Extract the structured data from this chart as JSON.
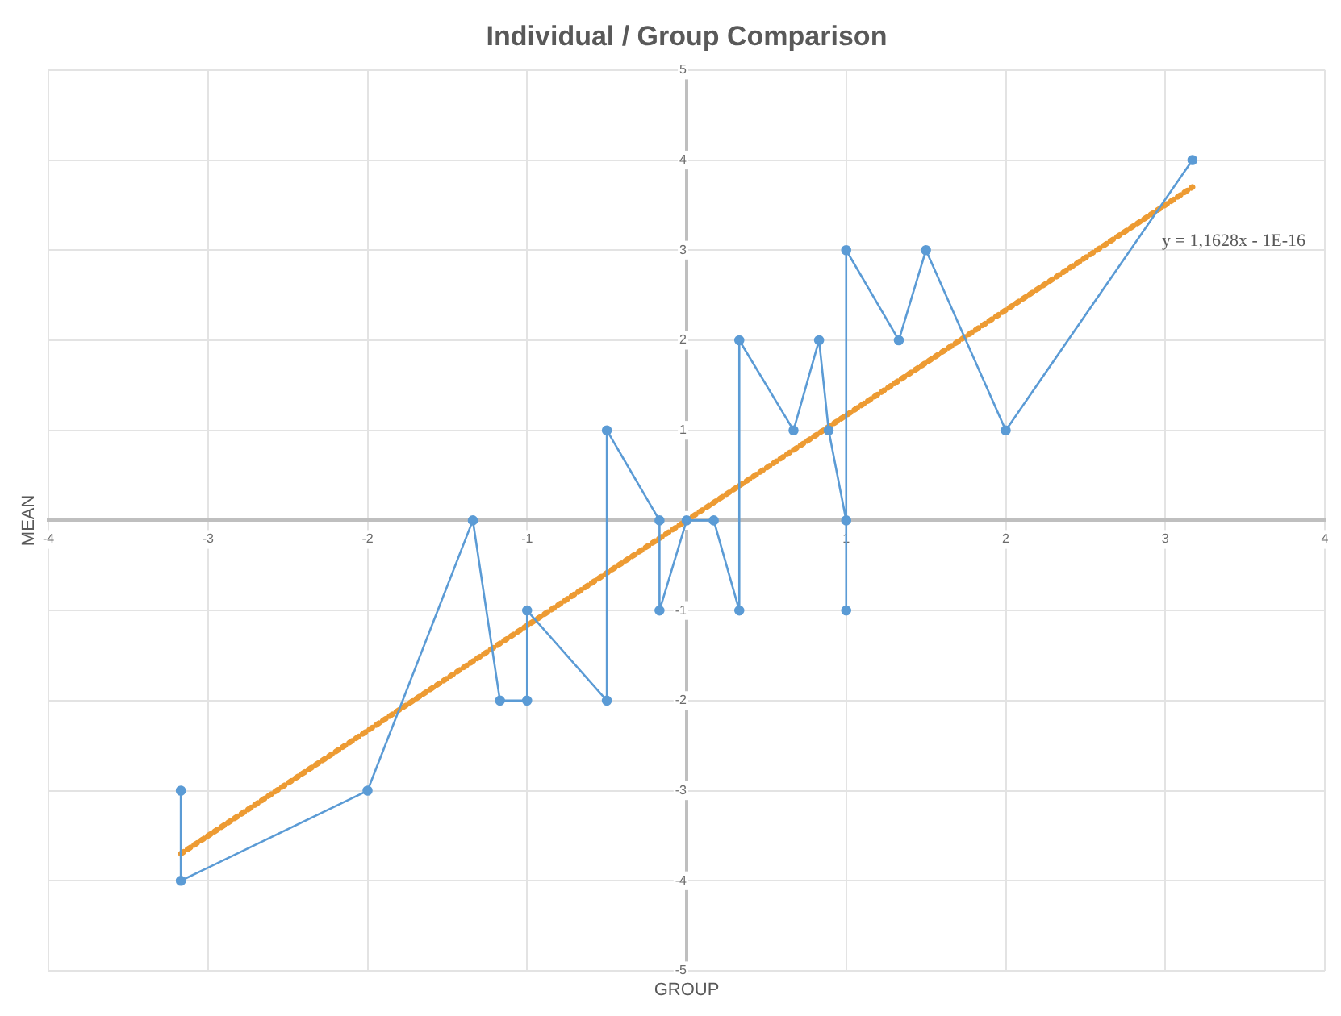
{
  "chart_data": {
    "type": "line",
    "title": "Individual / Group Comparison",
    "xlabel": "GROUP",
    "ylabel": "MEAN",
    "series": [
      {
        "color": "#5b9bd5",
        "marker": "circle",
        "line_style": "solid",
        "x": [
          -3.17,
          -3.17,
          -2,
          -1.34,
          -1.17,
          -1,
          -1,
          -0.5,
          -0.5,
          -0.17,
          -0.17,
          0,
          0.17,
          0.33,
          0.33,
          0.67,
          0.83,
          0.89,
          1,
          1,
          1,
          1.33,
          1.5,
          2,
          3.17
        ],
        "values": [
          -3,
          -4,
          -3,
          0,
          -2,
          -2,
          -1,
          -2,
          1,
          0,
          -1,
          0,
          0,
          -1,
          2,
          1,
          2,
          1,
          0,
          -1,
          3,
          2,
          3,
          1,
          4
        ]
      },
      {
        "color": "#ed9b33",
        "marker": "none",
        "line_style": "dotted",
        "x": [
          -3.17,
          3.17
        ],
        "values": [
          -3.7,
          3.7
        ]
      }
    ],
    "annotations": [
      "y = 1,1628x - 1E-16"
    ],
    "xlim": [
      -4,
      4
    ],
    "xticks": [
      -4,
      -3,
      -2,
      -1,
      {
        "value": 0,
        "label": null
      },
      1,
      2,
      3,
      4
    ],
    "ylim": [
      -5,
      5
    ],
    "yticks": [
      -5,
      -4,
      -3,
      -2,
      -1,
      {
        "value": 0,
        "label": null
      },
      1,
      2,
      3,
      4,
      5
    ],
    "grid": true,
    "legend": false
  }
}
